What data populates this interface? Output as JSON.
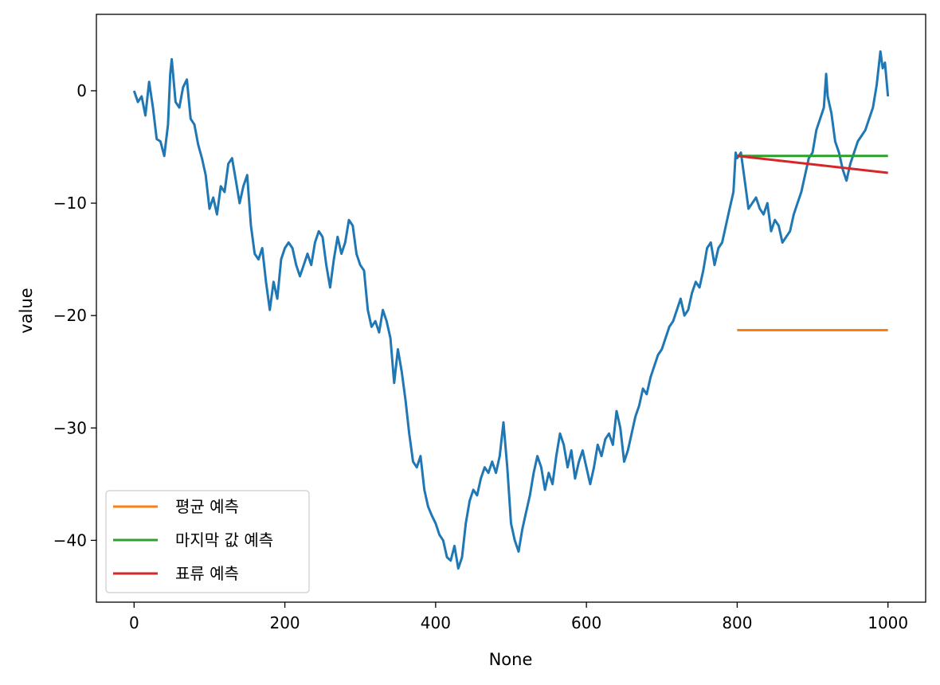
{
  "chart_data": {
    "type": "line",
    "title": "",
    "xlabel": "None",
    "ylabel": "value",
    "xlim": [
      -50,
      1050
    ],
    "ylim": [
      -45.5,
      6.8
    ],
    "xticks": [
      0,
      200,
      400,
      600,
      800,
      1000
    ],
    "yticks": [
      0,
      -10,
      -20,
      -30,
      -40
    ],
    "xtick_labels": [
      "0",
      "200",
      "400",
      "600",
      "800",
      "1000"
    ],
    "ytick_labels": [
      "0",
      "−10",
      "−20",
      "−30",
      "−40"
    ],
    "grid": false,
    "legend_position": "lower-left",
    "series": [
      {
        "color": "#1f77b4",
        "points": [
          [
            0,
            0.0
          ],
          [
            5,
            -1.0
          ],
          [
            10,
            -0.5
          ],
          [
            15,
            -2.2
          ],
          [
            20,
            0.8
          ],
          [
            25,
            -1.5
          ],
          [
            30,
            -4.3
          ],
          [
            35,
            -4.5
          ],
          [
            40,
            -5.8
          ],
          [
            45,
            -3.0
          ],
          [
            48,
            1.5
          ],
          [
            50,
            2.8
          ],
          [
            55,
            -1.0
          ],
          [
            60,
            -1.5
          ],
          [
            65,
            0.3
          ],
          [
            70,
            1.0
          ],
          [
            75,
            -2.5
          ],
          [
            80,
            -3.0
          ],
          [
            85,
            -4.8
          ],
          [
            90,
            -6.0
          ],
          [
            95,
            -7.5
          ],
          [
            100,
            -10.5
          ],
          [
            105,
            -9.5
          ],
          [
            110,
            -11.0
          ],
          [
            115,
            -8.5
          ],
          [
            120,
            -9.0
          ],
          [
            125,
            -6.5
          ],
          [
            130,
            -6.0
          ],
          [
            135,
            -8.0
          ],
          [
            140,
            -10.0
          ],
          [
            145,
            -8.5
          ],
          [
            150,
            -7.5
          ],
          [
            155,
            -12.0
          ],
          [
            160,
            -14.5
          ],
          [
            165,
            -15.0
          ],
          [
            170,
            -14.0
          ],
          [
            175,
            -17.0
          ],
          [
            180,
            -19.5
          ],
          [
            185,
            -17.0
          ],
          [
            190,
            -18.5
          ],
          [
            195,
            -15.0
          ],
          [
            200,
            -14.0
          ],
          [
            205,
            -13.5
          ],
          [
            210,
            -14.0
          ],
          [
            215,
            -15.5
          ],
          [
            220,
            -16.5
          ],
          [
            225,
            -15.5
          ],
          [
            230,
            -14.5
          ],
          [
            235,
            -15.5
          ],
          [
            240,
            -13.5
          ],
          [
            245,
            -12.5
          ],
          [
            250,
            -13.0
          ],
          [
            255,
            -15.5
          ],
          [
            260,
            -17.5
          ],
          [
            265,
            -15.0
          ],
          [
            270,
            -13.0
          ],
          [
            275,
            -14.5
          ],
          [
            280,
            -13.5
          ],
          [
            285,
            -11.5
          ],
          [
            290,
            -12.0
          ],
          [
            295,
            -14.5
          ],
          [
            300,
            -15.5
          ],
          [
            305,
            -16.0
          ],
          [
            310,
            -19.5
          ],
          [
            315,
            -21.0
          ],
          [
            320,
            -20.5
          ],
          [
            325,
            -21.5
          ],
          [
            330,
            -19.5
          ],
          [
            335,
            -20.5
          ],
          [
            340,
            -22.0
          ],
          [
            345,
            -26.0
          ],
          [
            350,
            -23.0
          ],
          [
            355,
            -25.0
          ],
          [
            360,
            -27.5
          ],
          [
            365,
            -30.5
          ],
          [
            370,
            -33.0
          ],
          [
            375,
            -33.5
          ],
          [
            380,
            -32.5
          ],
          [
            385,
            -35.5
          ],
          [
            390,
            -37.0
          ],
          [
            395,
            -37.8
          ],
          [
            400,
            -38.5
          ],
          [
            405,
            -39.5
          ],
          [
            410,
            -40.0
          ],
          [
            415,
            -41.5
          ],
          [
            420,
            -41.8
          ],
          [
            425,
            -40.5
          ],
          [
            430,
            -42.5
          ],
          [
            435,
            -41.5
          ],
          [
            440,
            -38.5
          ],
          [
            445,
            -36.5
          ],
          [
            450,
            -35.5
          ],
          [
            455,
            -36.0
          ],
          [
            460,
            -34.5
          ],
          [
            465,
            -33.5
          ],
          [
            470,
            -34.0
          ],
          [
            475,
            -33.0
          ],
          [
            480,
            -34.0
          ],
          [
            485,
            -32.5
          ],
          [
            490,
            -29.5
          ],
          [
            495,
            -33.5
          ],
          [
            500,
            -38.5
          ],
          [
            505,
            -40.0
          ],
          [
            510,
            -41.0
          ],
          [
            515,
            -39.0
          ],
          [
            520,
            -37.5
          ],
          [
            525,
            -36.0
          ],
          [
            530,
            -34.0
          ],
          [
            535,
            -32.5
          ],
          [
            540,
            -33.5
          ],
          [
            545,
            -35.5
          ],
          [
            550,
            -34.0
          ],
          [
            555,
            -35.0
          ],
          [
            560,
            -32.5
          ],
          [
            565,
            -30.5
          ],
          [
            570,
            -31.5
          ],
          [
            575,
            -33.5
          ],
          [
            580,
            -32.0
          ],
          [
            585,
            -34.5
          ],
          [
            590,
            -33.0
          ],
          [
            595,
            -32.0
          ],
          [
            600,
            -33.5
          ],
          [
            605,
            -35.0
          ],
          [
            610,
            -33.5
          ],
          [
            615,
            -31.5
          ],
          [
            620,
            -32.5
          ],
          [
            625,
            -31.0
          ],
          [
            630,
            -30.5
          ],
          [
            635,
            -31.5
          ],
          [
            640,
            -28.5
          ],
          [
            645,
            -30.0
          ],
          [
            650,
            -33.0
          ],
          [
            655,
            -32.0
          ],
          [
            660,
            -30.5
          ],
          [
            665,
            -29.0
          ],
          [
            670,
            -28.0
          ],
          [
            675,
            -26.5
          ],
          [
            680,
            -27.0
          ],
          [
            685,
            -25.5
          ],
          [
            690,
            -24.5
          ],
          [
            695,
            -23.5
          ],
          [
            700,
            -23.0
          ],
          [
            705,
            -22.0
          ],
          [
            710,
            -21.0
          ],
          [
            715,
            -20.5
          ],
          [
            720,
            -19.5
          ],
          [
            725,
            -18.5
          ],
          [
            730,
            -20.0
          ],
          [
            735,
            -19.5
          ],
          [
            740,
            -18.0
          ],
          [
            745,
            -17.0
          ],
          [
            750,
            -17.5
          ],
          [
            755,
            -16.0
          ],
          [
            760,
            -14.0
          ],
          [
            765,
            -13.5
          ],
          [
            770,
            -15.5
          ],
          [
            775,
            -14.0
          ],
          [
            780,
            -13.5
          ],
          [
            785,
            -12.0
          ],
          [
            790,
            -10.5
          ],
          [
            795,
            -9.0
          ],
          [
            798,
            -5.5
          ],
          [
            800,
            -6.0
          ],
          [
            805,
            -5.5
          ],
          [
            810,
            -8.0
          ],
          [
            815,
            -10.5
          ],
          [
            820,
            -10.0
          ],
          [
            825,
            -9.5
          ],
          [
            830,
            -10.5
          ],
          [
            835,
            -11.0
          ],
          [
            840,
            -10.0
          ],
          [
            845,
            -12.5
          ],
          [
            850,
            -11.5
          ],
          [
            855,
            -12.0
          ],
          [
            860,
            -13.5
          ],
          [
            865,
            -13.0
          ],
          [
            870,
            -12.5
          ],
          [
            875,
            -11.0
          ],
          [
            880,
            -10.0
          ],
          [
            885,
            -9.0
          ],
          [
            890,
            -7.5
          ],
          [
            895,
            -6.0
          ],
          [
            900,
            -5.5
          ],
          [
            905,
            -3.5
          ],
          [
            910,
            -2.5
          ],
          [
            915,
            -1.5
          ],
          [
            918,
            1.5
          ],
          [
            920,
            -0.5
          ],
          [
            925,
            -2.0
          ],
          [
            930,
            -4.5
          ],
          [
            935,
            -5.5
          ],
          [
            940,
            -7.0
          ],
          [
            945,
            -8.0
          ],
          [
            950,
            -6.5
          ],
          [
            955,
            -5.5
          ],
          [
            960,
            -4.5
          ],
          [
            965,
            -4.0
          ],
          [
            970,
            -3.5
          ],
          [
            975,
            -2.5
          ],
          [
            980,
            -1.5
          ],
          [
            985,
            0.5
          ],
          [
            990,
            3.5
          ],
          [
            993,
            2.0
          ],
          [
            996,
            2.5
          ],
          [
            1000,
            -0.5
          ]
        ]
      }
    ],
    "forecasts": [
      {
        "name": "평균 예측",
        "color": "#ff7f0e",
        "x": [
          800,
          1000
        ],
        "values": [
          -21.3,
          -21.3
        ]
      },
      {
        "name": "마지막 값 예측",
        "color": "#2ca02c",
        "x": [
          800,
          1000
        ],
        "values": [
          -5.8,
          -5.8
        ]
      },
      {
        "name": "표류 예측",
        "color": "#d62728",
        "x": [
          800,
          1000
        ],
        "values": [
          -5.8,
          -7.3
        ]
      }
    ]
  }
}
